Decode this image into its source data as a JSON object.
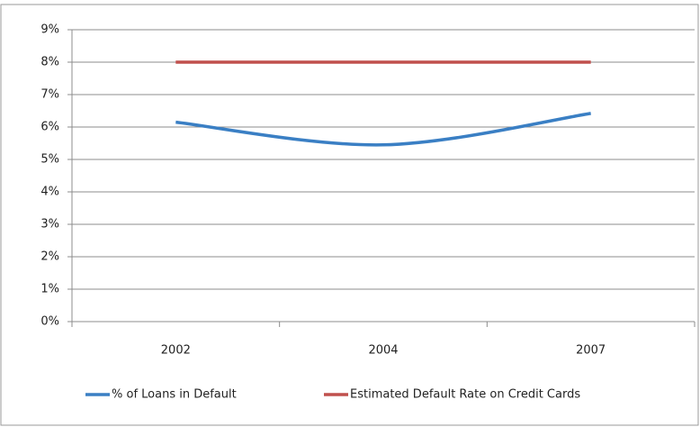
{
  "chart_data": {
    "type": "line",
    "categories": [
      "2002",
      "2004",
      "2007"
    ],
    "series": [
      {
        "name": "% of Loans in Default",
        "color": "#3a7fc4",
        "values": [
          6.15,
          5.45,
          6.42
        ]
      },
      {
        "name": "Estimated Default Rate on Credit Cards",
        "color": "#c0504d",
        "values": [
          8,
          8,
          8
        ]
      }
    ],
    "ylim": [
      0,
      9
    ],
    "yticks": [
      {
        "value": 0,
        "label": "0%"
      },
      {
        "value": 1,
        "label": "1%"
      },
      {
        "value": 2,
        "label": "2%"
      },
      {
        "value": 3,
        "label": "3%"
      },
      {
        "value": 4,
        "label": "4%"
      },
      {
        "value": 5,
        "label": "5%"
      },
      {
        "value": 6,
        "label": "6%"
      },
      {
        "value": 7,
        "label": "7%"
      },
      {
        "value": 8,
        "label": "8%"
      },
      {
        "value": 9,
        "label": "9%"
      }
    ],
    "grid": true,
    "smooth": true,
    "legend": "bottom"
  }
}
